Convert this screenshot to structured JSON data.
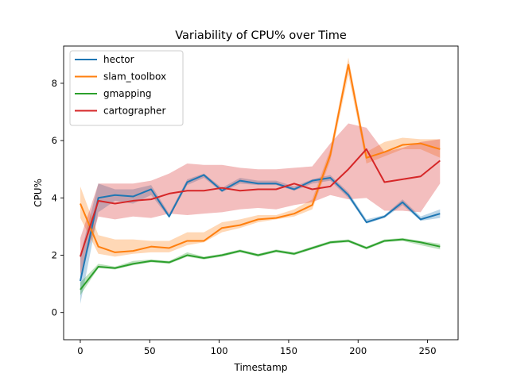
{
  "chart_data": {
    "type": "line",
    "title": "Variability of CPU% over Time",
    "xlabel": "Timestamp",
    "ylabel": "CPU%",
    "xlim": [
      -12,
      272
    ],
    "ylim": [
      -0.95,
      9.3
    ],
    "xticks": [
      0,
      50,
      100,
      150,
      200,
      250
    ],
    "yticks": [
      0,
      2,
      4,
      6,
      8
    ],
    "grid": false,
    "legend_position": "top-left",
    "x": [
      0,
      13,
      25,
      38,
      51,
      64,
      77,
      89,
      102,
      115,
      128,
      141,
      154,
      167,
      180,
      193,
      206,
      219,
      232,
      245,
      259
    ],
    "series": [
      {
        "name": "hector",
        "color": "#1f77b4",
        "values": [
          1.1,
          4.0,
          4.1,
          4.05,
          4.3,
          3.35,
          4.55,
          4.8,
          4.25,
          4.6,
          4.5,
          4.5,
          4.3,
          4.6,
          4.7,
          4.1,
          3.15,
          3.35,
          3.85,
          3.25,
          3.45
        ],
        "lower": [
          0.3,
          3.5,
          3.9,
          3.8,
          4.1,
          3.3,
          4.45,
          4.7,
          4.2,
          4.5,
          4.45,
          4.45,
          4.25,
          4.5,
          4.6,
          4.0,
          3.1,
          3.3,
          3.75,
          3.2,
          3.3
        ],
        "upper": [
          2.0,
          4.5,
          4.3,
          4.3,
          4.45,
          3.45,
          4.65,
          4.85,
          4.35,
          4.7,
          4.6,
          4.6,
          4.4,
          4.65,
          4.8,
          4.2,
          3.25,
          3.4,
          3.95,
          3.35,
          3.6
        ]
      },
      {
        "name": "slam_toolbox",
        "color": "#ff7f0e",
        "values": [
          3.8,
          2.3,
          2.1,
          2.15,
          2.3,
          2.25,
          2.5,
          2.5,
          2.95,
          3.05,
          3.25,
          3.3,
          3.45,
          3.75,
          5.5,
          8.65,
          5.4,
          5.6,
          5.85,
          5.9,
          5.7
        ],
        "lower": [
          3.3,
          2.05,
          1.95,
          2.05,
          2.1,
          2.1,
          2.35,
          2.45,
          2.8,
          2.95,
          3.15,
          3.25,
          3.35,
          3.6,
          5.3,
          8.3,
          5.2,
          5.45,
          5.7,
          5.7,
          5.4
        ],
        "upper": [
          4.4,
          2.7,
          2.55,
          2.55,
          2.5,
          2.5,
          2.8,
          2.8,
          3.15,
          3.25,
          3.4,
          3.4,
          3.6,
          3.95,
          5.7,
          8.9,
          5.6,
          5.95,
          6.1,
          6.05,
          6.05
        ]
      },
      {
        "name": "gmapping",
        "color": "#2ca02c",
        "values": [
          0.8,
          1.6,
          1.55,
          1.7,
          1.8,
          1.75,
          2.0,
          1.9,
          2.0,
          2.15,
          2.0,
          2.15,
          2.05,
          2.25,
          2.45,
          2.5,
          2.25,
          2.5,
          2.55,
          2.45,
          2.3
        ],
        "lower": [
          0.6,
          1.55,
          1.5,
          1.65,
          1.75,
          1.7,
          1.95,
          1.85,
          1.95,
          2.1,
          1.95,
          2.1,
          2.0,
          2.2,
          2.4,
          2.45,
          2.2,
          2.45,
          2.5,
          2.35,
          2.2
        ],
        "upper": [
          1.05,
          1.7,
          1.6,
          1.8,
          1.85,
          1.8,
          2.1,
          1.95,
          2.05,
          2.2,
          2.05,
          2.2,
          2.1,
          2.3,
          2.5,
          2.55,
          2.3,
          2.55,
          2.6,
          2.5,
          2.4
        ]
      },
      {
        "name": "cartographer",
        "color": "#d62728",
        "values": [
          1.95,
          3.9,
          3.8,
          3.9,
          3.95,
          4.15,
          4.25,
          4.25,
          4.35,
          4.25,
          4.3,
          4.3,
          4.5,
          4.3,
          4.4,
          5.0,
          5.7,
          4.55,
          4.65,
          4.75,
          5.3
        ],
        "lower": [
          1.3,
          3.35,
          3.25,
          3.35,
          3.3,
          3.45,
          3.4,
          3.45,
          3.5,
          3.6,
          3.65,
          3.6,
          3.75,
          3.85,
          4.1,
          3.95,
          4.0,
          3.55,
          3.55,
          3.5,
          4.5
        ],
        "upper": [
          2.6,
          4.5,
          4.5,
          4.5,
          4.6,
          4.85,
          5.2,
          5.15,
          5.15,
          5.05,
          5.0,
          5.0,
          5.05,
          5.1,
          5.9,
          6.6,
          6.45,
          5.6,
          5.75,
          5.95,
          6.05
        ]
      }
    ]
  }
}
